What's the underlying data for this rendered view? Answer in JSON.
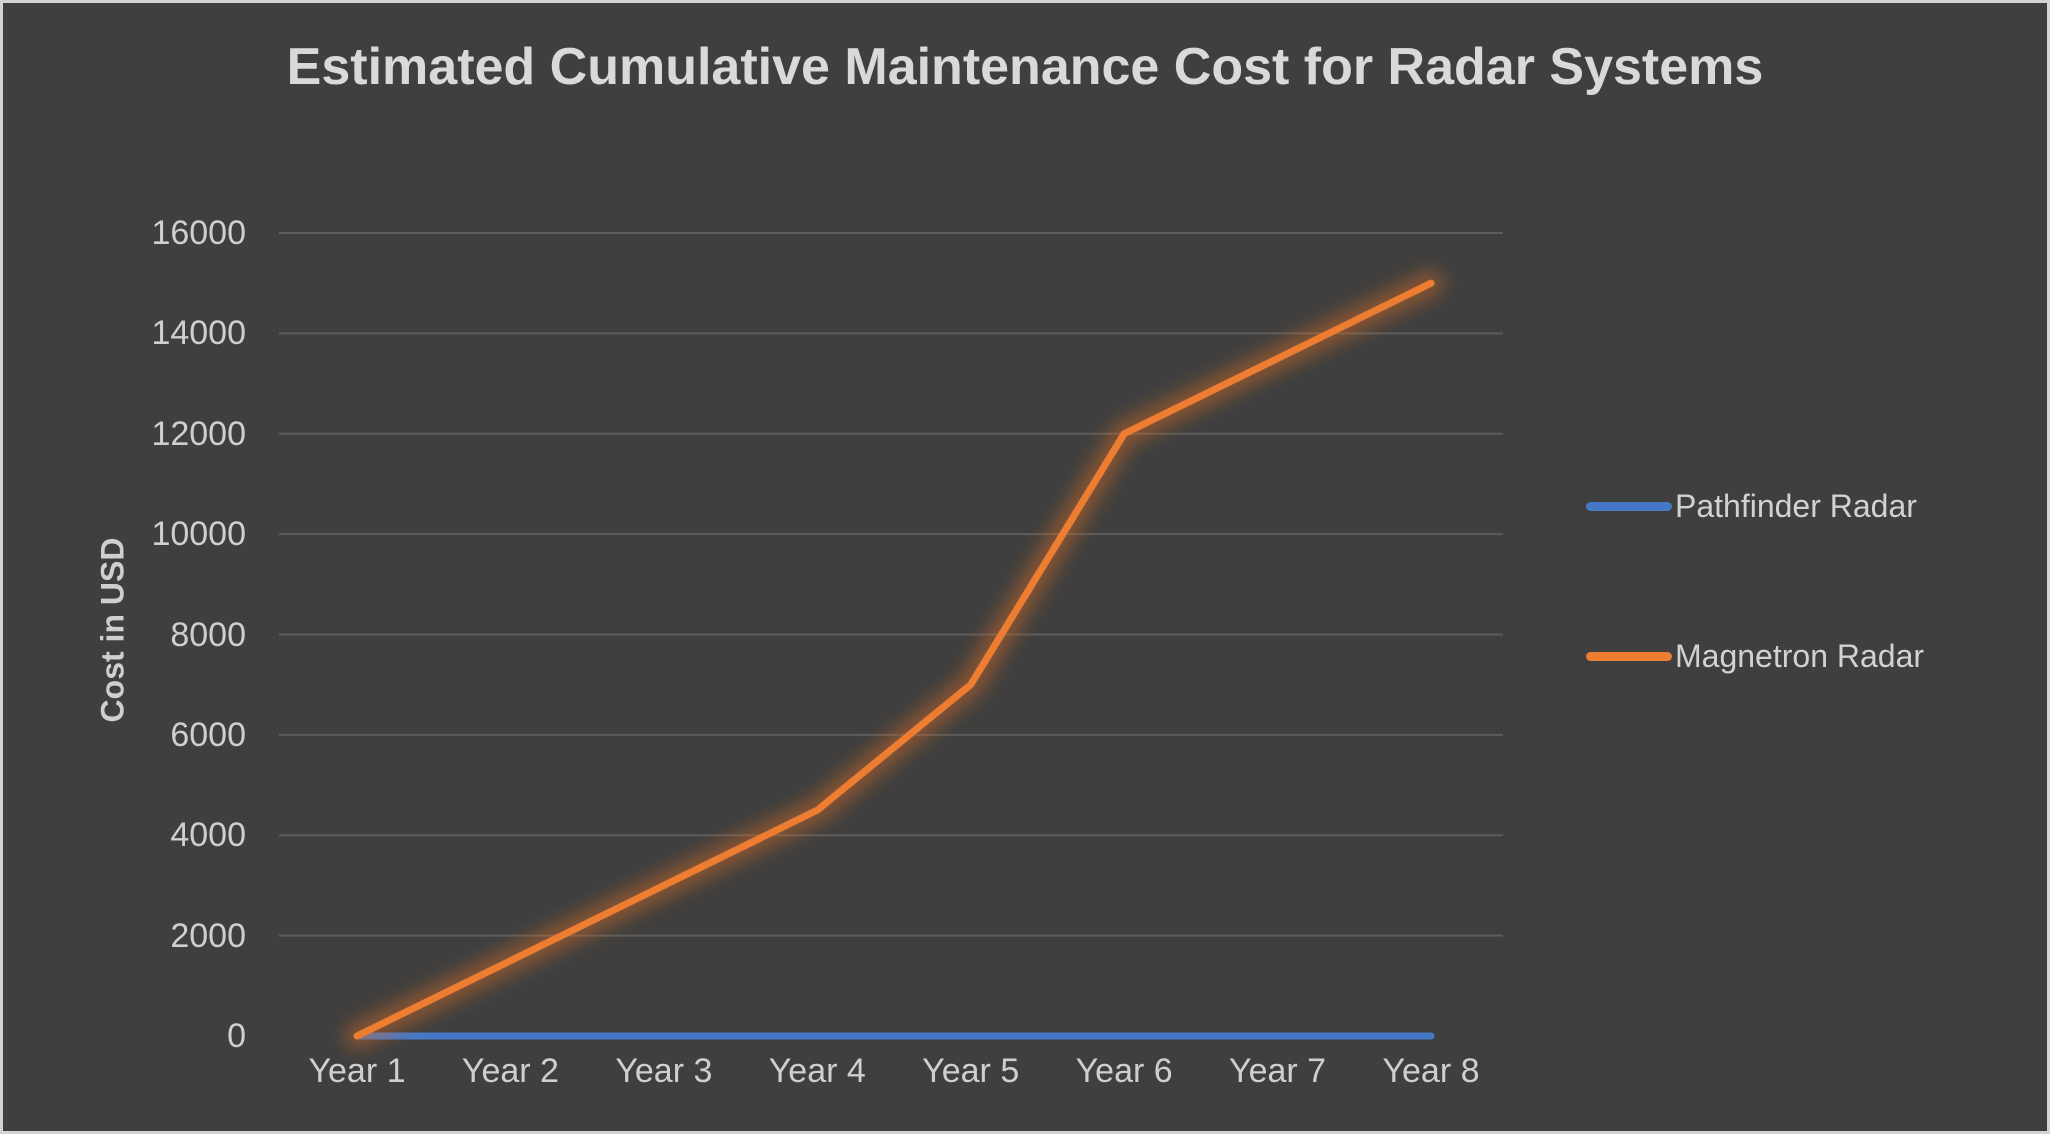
{
  "chart_data": {
    "type": "line",
    "title": "Estimated Cumulative Maintenance Cost for Radar Systems",
    "xlabel": "",
    "ylabel": "Cost in USD",
    "categories": [
      "Year 1",
      "Year 2",
      "Year 3",
      "Year 4",
      "Year 5",
      "Year 6",
      "Year 7",
      "Year 8"
    ],
    "series": [
      {
        "name": "Pathfinder Radar",
        "color": "#4678C8",
        "glow_color": "#1E3A66",
        "values": [
          0,
          0,
          0,
          0,
          0,
          0,
          0,
          0
        ]
      },
      {
        "name": "Magnetron Radar",
        "color": "#ED7D31",
        "glow_color": "#D96B1E",
        "values": [
          0,
          1500,
          3000,
          4500,
          7000,
          12000,
          13500,
          15000
        ]
      }
    ],
    "ylim": [
      0,
      16000
    ],
    "yticks": [
      0,
      2000,
      4000,
      6000,
      8000,
      10000,
      12000,
      14000,
      16000
    ],
    "grid": "horizontal gridlines on (2000-16000), none at 0",
    "legend_position": "right"
  },
  "colors": {
    "background": "#3F3F3F",
    "frame": "#D3D3D3",
    "gridline": "#5C5C5C",
    "tick_text": "#CFCFCF",
    "title_text": "#D9D9D9"
  }
}
